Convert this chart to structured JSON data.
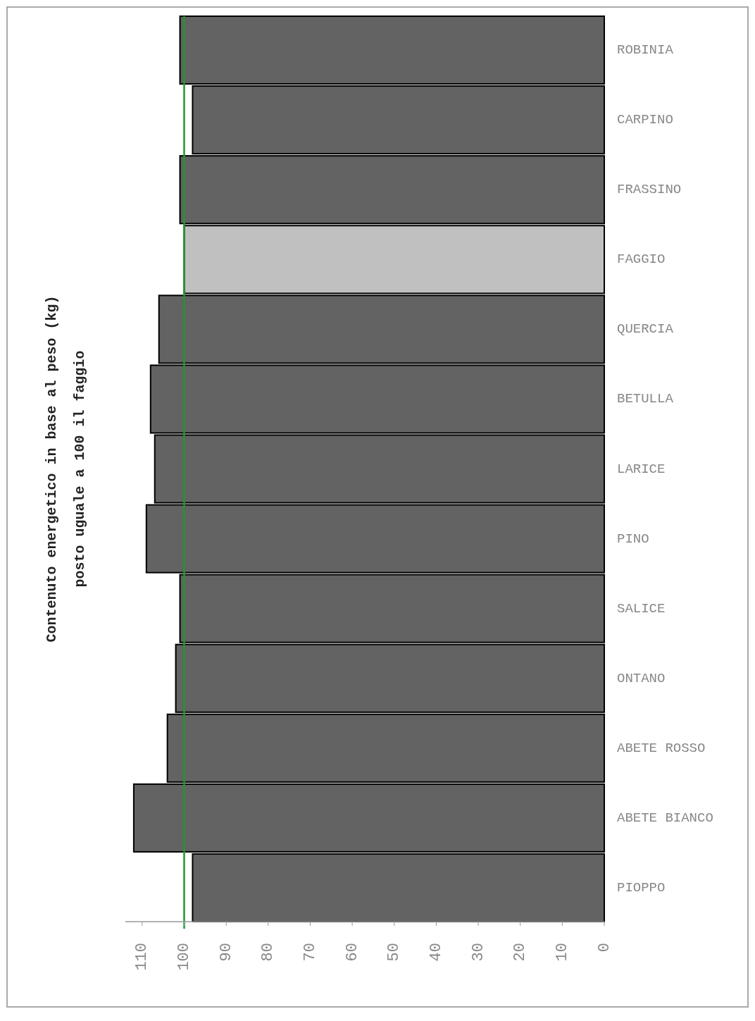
{
  "chart_data": {
    "type": "bar",
    "orientation": "horizontal",
    "ylabel": "Contenuto energetico in base al peso (kg)\nposto uguale a 100 il faggio",
    "categories": [
      "ROBINIA",
      "CARPINO",
      "FRASSINO",
      "FAGGIO",
      "QUERCIA",
      "BETULLA",
      "LARICE",
      "PINO",
      "SALICE",
      "ONTANO",
      "ABETE ROSSO",
      "ABETE BIANCO",
      "PIOPPO"
    ],
    "values": [
      101,
      98,
      101,
      100,
      106,
      108,
      107,
      109,
      101,
      102,
      104,
      112,
      98
    ],
    "colors": [
      "#636363",
      "#636363",
      "#636363",
      "#c0c0c0",
      "#636363",
      "#636363",
      "#636363",
      "#636363",
      "#636363",
      "#636363",
      "#636363",
      "#636363",
      "#636363"
    ],
    "xlim": [
      114,
      0
    ],
    "xticks": [
      0,
      10,
      20,
      30,
      40,
      50,
      60,
      70,
      80,
      90,
      100,
      110
    ],
    "ref_lines": [
      {
        "axis": "x",
        "value": 100,
        "color": "#1f9a2e"
      }
    ],
    "grid": false
  }
}
